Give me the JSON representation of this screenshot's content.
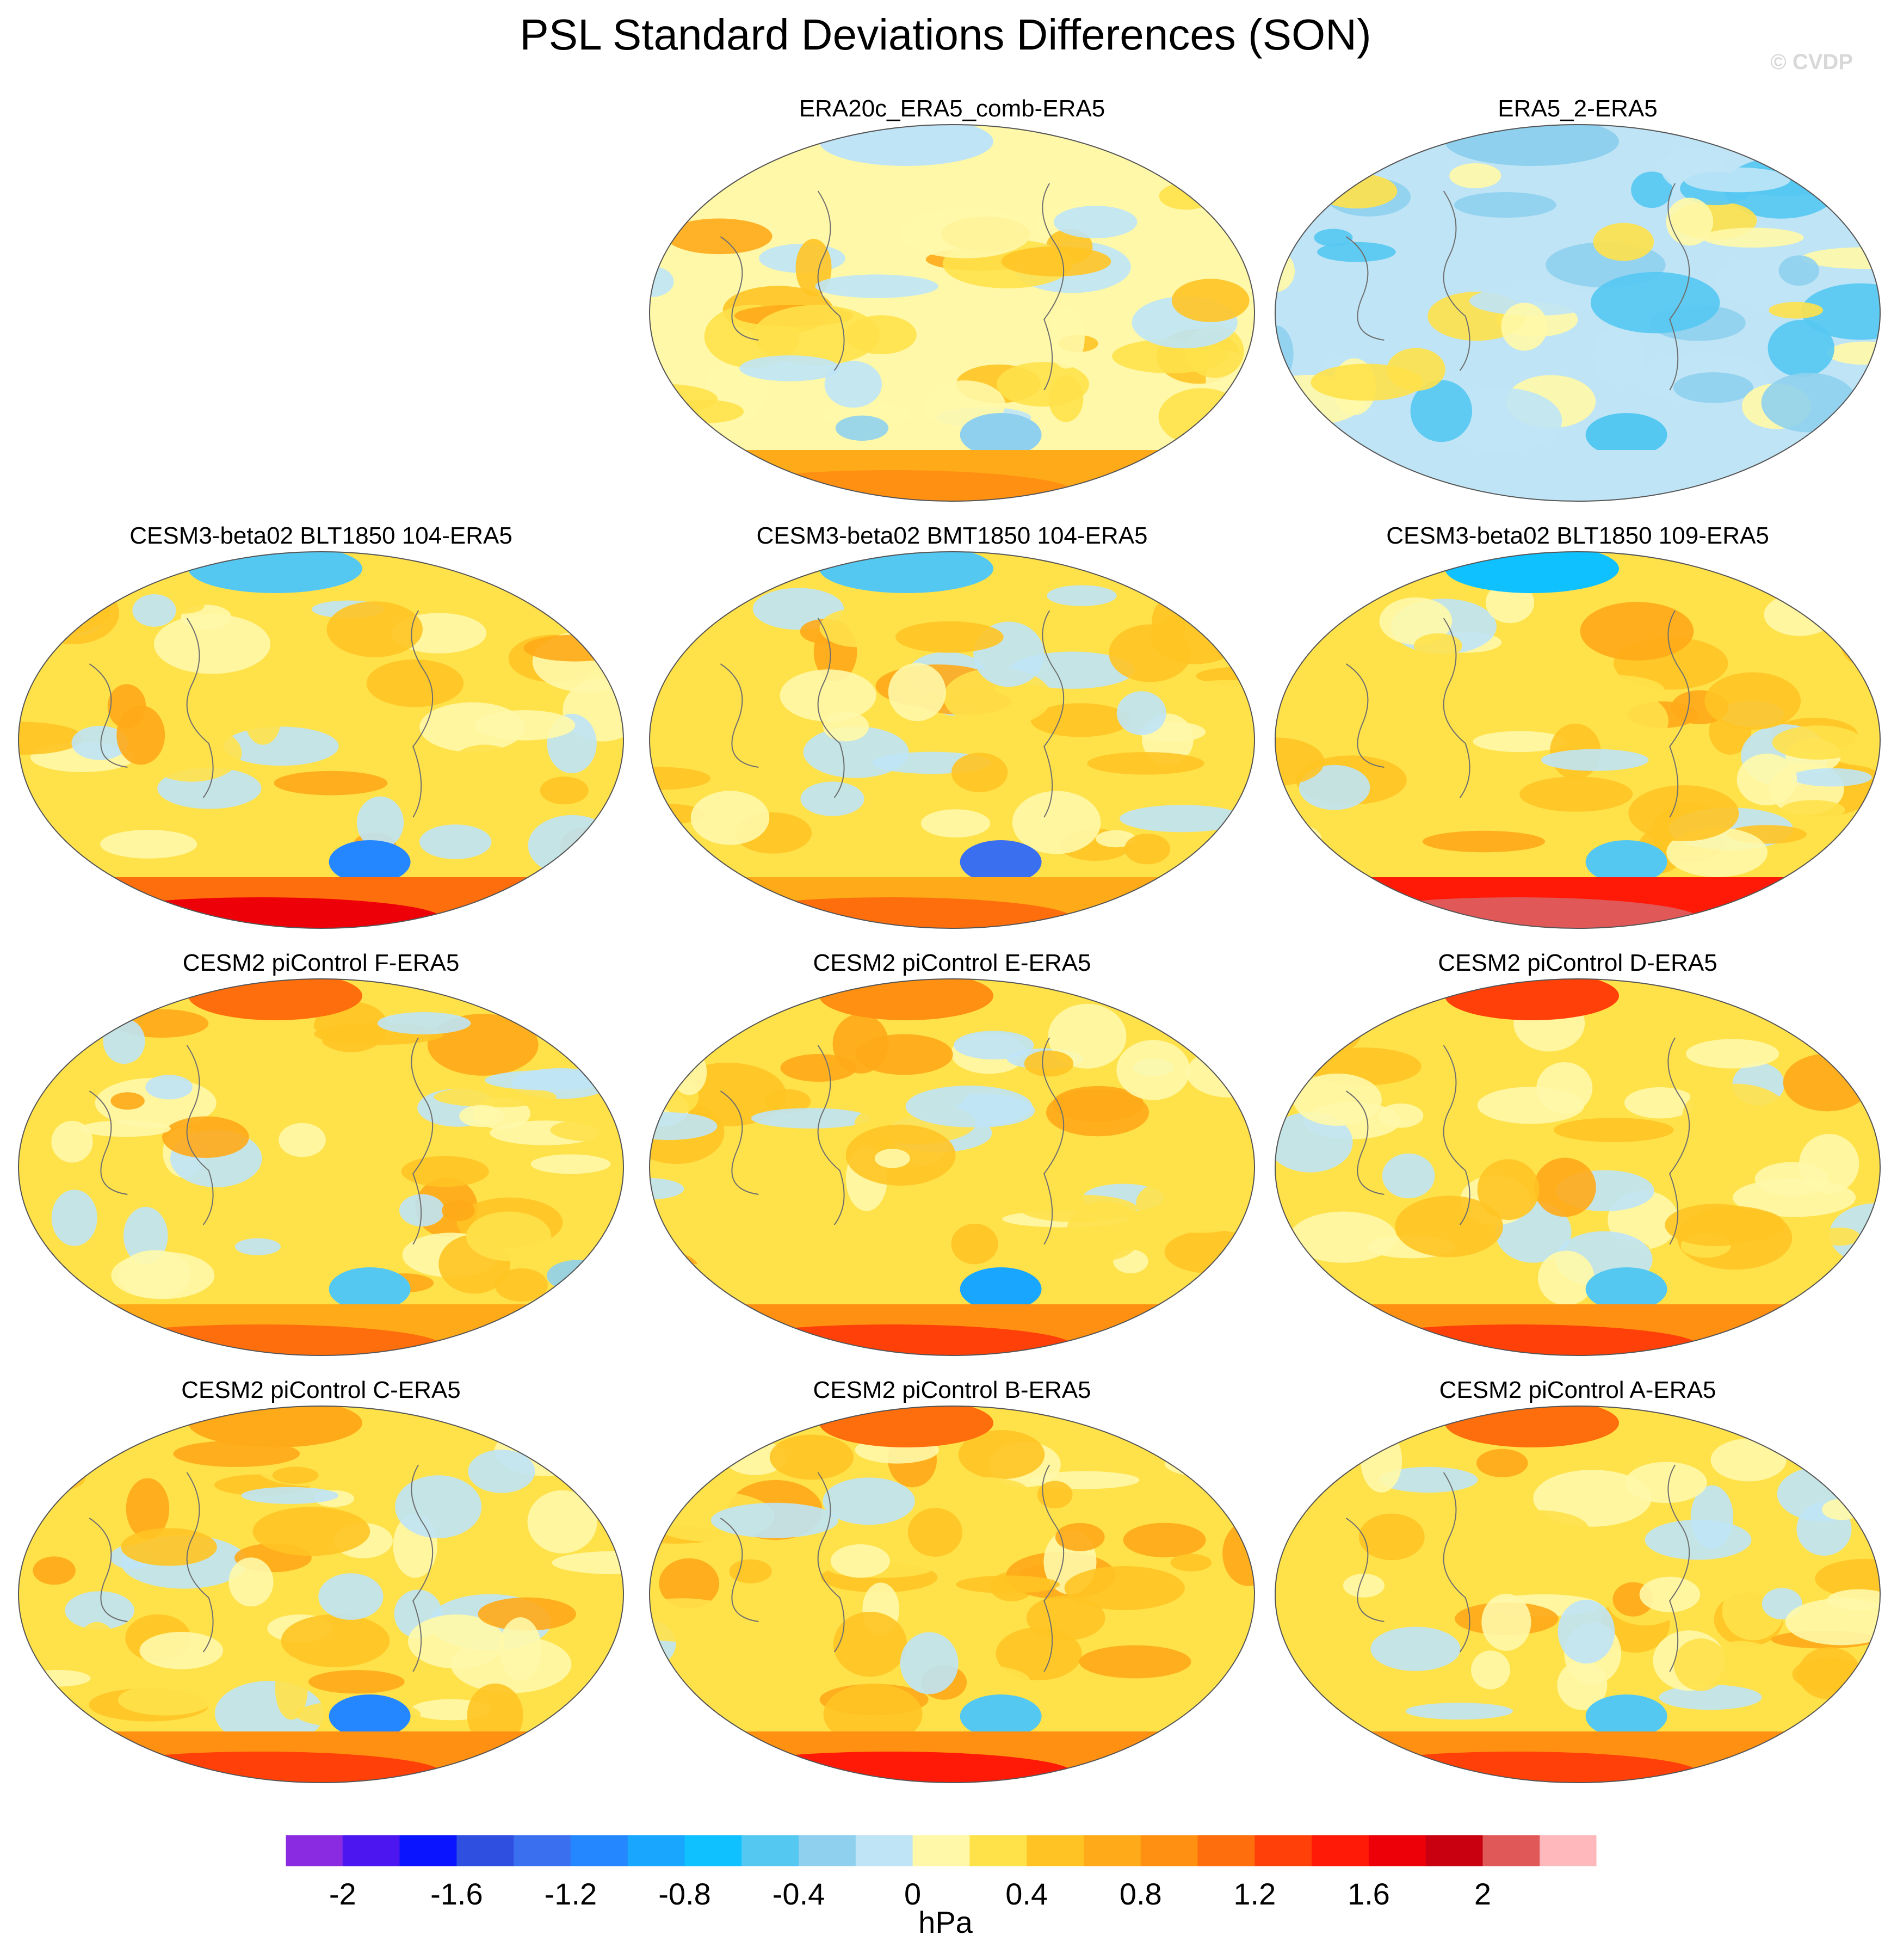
{
  "header": {
    "title": "PSL Standard Deviations Differences (SON)",
    "watermark": "© CVDP"
  },
  "chart_data": {
    "type": "heatmap",
    "title": "PSL Standard Deviations Differences (SON)",
    "projection": "Robinson",
    "units": "hPa",
    "colorbar": {
      "levels": [
        -2.2,
        -2,
        -1.8,
        -1.6,
        -1.4,
        -1.2,
        -1,
        -0.8,
        -0.6,
        -0.4,
        -0.2,
        0,
        0.2,
        0.4,
        0.6,
        0.8,
        1,
        1.2,
        1.4,
        1.6,
        1.8,
        2,
        2.2
      ],
      "colors": [
        "#8a2be2",
        "#4b16f0",
        "#0a14ff",
        "#2f4fe0",
        "#3a6ff0",
        "#2587ff",
        "#18a6ff",
        "#0fc1ff",
        "#55c8f2",
        "#8fd0ee",
        "#bfe4f6",
        "#fff8a8",
        "#ffe14a",
        "#ffc424",
        "#ffaa18",
        "#ff9012",
        "#ff6e0c",
        "#ff4008",
        "#ff1a08",
        "#ee0008",
        "#c80010",
        "#e05858",
        "#ffb8bc"
      ],
      "tick_labels": [
        "-2",
        "-1.6",
        "-1.2",
        "-0.8",
        "-0.4",
        "0",
        "0.4",
        "0.8",
        "1.2",
        "1.6",
        "2"
      ],
      "label": "hPa"
    },
    "panels": [
      {
        "title": "ERA20c_ERA5_comb-ERA5",
        "south_polar_anomaly": 0.9,
        "north_polar_anomaly": -0.2,
        "southern_ocean_low": -0.3,
        "background": 0.15
      },
      {
        "title": "ERA5_2-ERA5",
        "south_polar_anomaly": -0.2,
        "north_polar_anomaly": -0.3,
        "southern_ocean_low": -0.6,
        "background": -0.1
      },
      {
        "title": "CESM3-beta02 BLT1850 104-ERA5",
        "south_polar_anomaly": 1.6,
        "north_polar_anomaly": -0.6,
        "southern_ocean_low": -1.2,
        "background": 0.2
      },
      {
        "title": "CESM3-beta02 BMT1850 104-ERA5",
        "south_polar_anomaly": 1.0,
        "north_polar_anomaly": -0.6,
        "southern_ocean_low": -1.4,
        "background": 0.2
      },
      {
        "title": "CESM3-beta02 BLT1850 109-ERA5",
        "south_polar_anomaly": 2.0,
        "north_polar_anomaly": -0.7,
        "southern_ocean_low": -0.5,
        "background": 0.2
      },
      {
        "title": "CESM2 piControl F-ERA5",
        "south_polar_anomaly": 1.1,
        "north_polar_anomaly": 1.0,
        "southern_ocean_low": -0.6,
        "background": 0.2
      },
      {
        "title": "CESM2 piControl E-ERA5",
        "south_polar_anomaly": 1.2,
        "north_polar_anomaly": 0.8,
        "southern_ocean_low": -0.9,
        "background": 0.2
      },
      {
        "title": "CESM2 piControl D-ERA5",
        "south_polar_anomaly": 1.2,
        "north_polar_anomaly": 1.2,
        "southern_ocean_low": -0.6,
        "background": 0.2
      },
      {
        "title": "CESM2 piControl C-ERA5",
        "south_polar_anomaly": 1.3,
        "north_polar_anomaly": 0.7,
        "southern_ocean_low": -1.1,
        "background": 0.2
      },
      {
        "title": "CESM2 piControl B-ERA5",
        "south_polar_anomaly": 1.4,
        "north_polar_anomaly": 1.0,
        "southern_ocean_low": -0.6,
        "background": 0.3
      },
      {
        "title": "CESM2 piControl A-ERA5",
        "south_polar_anomaly": 1.2,
        "north_polar_anomaly": 1.1,
        "southern_ocean_low": -0.6,
        "background": 0.2
      }
    ]
  }
}
